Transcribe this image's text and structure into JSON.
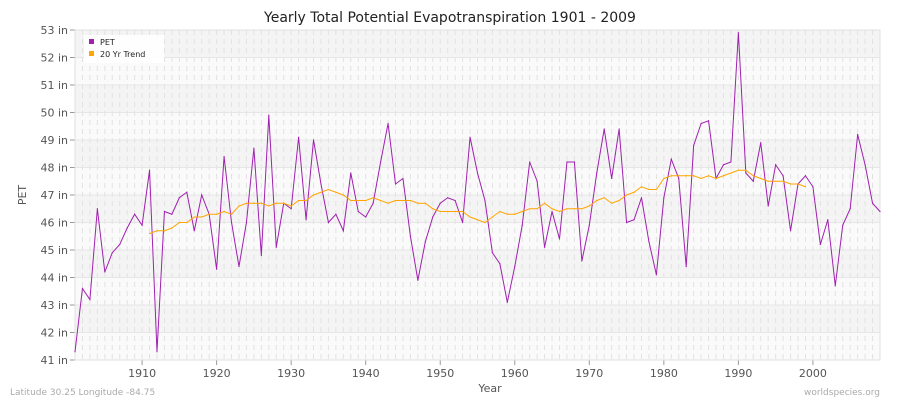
{
  "chart_data": {
    "type": "line",
    "title": "Yearly Total Potential Evapotranspiration 1901 - 2009",
    "xlabel": "Year",
    "ylabel": "PET",
    "xlim": [
      1901,
      2009
    ],
    "ylim": [
      41,
      53
    ],
    "xticks": [
      1910,
      1920,
      1930,
      1940,
      1950,
      1960,
      1970,
      1980,
      1990,
      2000
    ],
    "yticks": [
      "41 in",
      "42 in",
      "43 in",
      "44 in",
      "45 in",
      "46 in",
      "47 in",
      "48 in",
      "49 in",
      "50 in",
      "51 in",
      "52 in",
      "53 in"
    ],
    "grid": true,
    "legend_position": "top-left",
    "series": [
      {
        "name": "PET",
        "color": "#a020b0",
        "x_start": 1901,
        "values": [
          41.3,
          43.6,
          43.2,
          46.5,
          44.2,
          44.9,
          45.2,
          45.8,
          46.3,
          45.9,
          47.9,
          41.3,
          46.4,
          46.3,
          46.9,
          47.1,
          45.7,
          47.0,
          46.3,
          44.3,
          48.4,
          46.0,
          44.4,
          46.0,
          48.7,
          44.8,
          49.9,
          45.1,
          46.7,
          46.5,
          49.1,
          46.1,
          49.0,
          47.4,
          46.0,
          46.3,
          45.7,
          47.8,
          46.4,
          46.2,
          46.7,
          48.2,
          49.6,
          47.4,
          47.6,
          45.5,
          43.9,
          45.3,
          46.2,
          46.7,
          46.9,
          46.8,
          46.0,
          49.1,
          47.8,
          46.8,
          44.9,
          44.5,
          43.1,
          44.4,
          45.9,
          48.2,
          47.5,
          45.1,
          46.4,
          45.4,
          48.2,
          48.2,
          44.6,
          45.9,
          47.8,
          49.4,
          47.6,
          49.4,
          46.0,
          46.1,
          46.9,
          45.3,
          44.1,
          46.9,
          48.3,
          47.6,
          44.4,
          48.8,
          49.6,
          49.7,
          47.6,
          48.1,
          48.2,
          52.9,
          47.8,
          47.5,
          48.9,
          46.6,
          48.1,
          47.7,
          45.7,
          47.4,
          47.7,
          47.3,
          45.2,
          46.1,
          43.7,
          45.9,
          46.5,
          49.2,
          48.1,
          46.7,
          46.4
        ]
      },
      {
        "name": "20 Yr Trend",
        "color": "#ffa500",
        "x_start": 1911,
        "values": [
          45.6,
          45.7,
          45.7,
          45.8,
          46.0,
          46.0,
          46.2,
          46.2,
          46.3,
          46.3,
          46.4,
          46.3,
          46.6,
          46.7,
          46.7,
          46.7,
          46.6,
          46.7,
          46.7,
          46.6,
          46.8,
          46.8,
          47.0,
          47.1,
          47.2,
          47.1,
          47.0,
          46.8,
          46.8,
          46.8,
          46.9,
          46.8,
          46.7,
          46.8,
          46.8,
          46.8,
          46.7,
          46.7,
          46.5,
          46.4,
          46.4,
          46.4,
          46.4,
          46.2,
          46.1,
          46.0,
          46.2,
          46.4,
          46.3,
          46.3,
          46.4,
          46.5,
          46.5,
          46.7,
          46.5,
          46.4,
          46.5,
          46.5,
          46.5,
          46.6,
          46.8,
          46.9,
          46.7,
          46.8,
          47.0,
          47.1,
          47.3,
          47.2,
          47.2,
          47.6,
          47.7,
          47.7,
          47.7,
          47.7,
          47.6,
          47.7,
          47.6,
          47.7,
          47.8,
          47.9,
          47.9,
          47.7,
          47.6,
          47.5,
          47.5,
          47.5,
          47.4,
          47.4,
          47.3
        ]
      }
    ]
  },
  "footer": {
    "location": "Latitude 30.25 Longitude -84.75",
    "source": "worldspecies.org"
  }
}
